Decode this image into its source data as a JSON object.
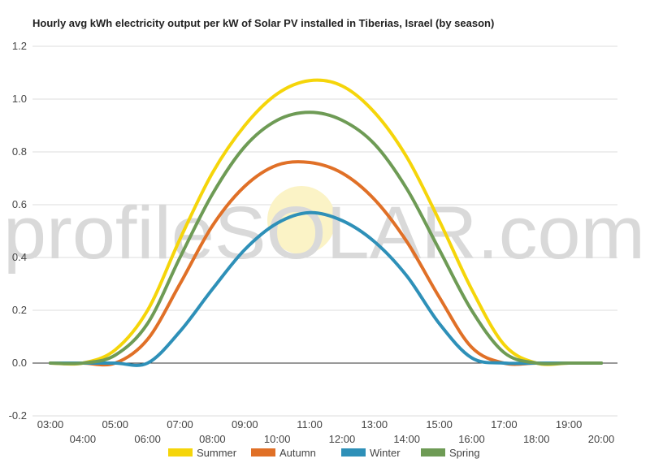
{
  "chart_data": {
    "type": "line",
    "title": "Hourly avg kWh electricity output per kW of Solar PV installed in Tiberias, Israel (by season)",
    "xlabel": "",
    "ylabel": "",
    "ylim": [
      -0.2,
      1.2
    ],
    "yticks": [
      "-0.2",
      "0.0",
      "0.2",
      "0.4",
      "0.6",
      "0.8",
      "1.0",
      "1.2"
    ],
    "categories": [
      "03:00",
      "04:00",
      "05:00",
      "06:00",
      "07:00",
      "08:00",
      "09:00",
      "10:00",
      "11:00",
      "12:00",
      "13:00",
      "14:00",
      "15:00",
      "16:00",
      "17:00",
      "18:00",
      "19:00",
      "20:00"
    ],
    "grid": true,
    "legend_position": "bottom",
    "watermark": "profileSOLAR.com",
    "series": [
      {
        "name": "Summer",
        "color": "#f5d50a",
        "values": [
          0.0,
          0.0,
          0.05,
          0.2,
          0.47,
          0.72,
          0.9,
          1.02,
          1.07,
          1.05,
          0.95,
          0.78,
          0.54,
          0.28,
          0.07,
          0.0,
          0.0,
          0.0
        ]
      },
      {
        "name": "Autumn",
        "color": "#e07027",
        "values": [
          0.0,
          0.0,
          0.0,
          0.09,
          0.3,
          0.52,
          0.67,
          0.75,
          0.76,
          0.72,
          0.62,
          0.46,
          0.25,
          0.06,
          0.0,
          0.0,
          0.0,
          0.0
        ]
      },
      {
        "name": "Winter",
        "color": "#2e90b8",
        "values": [
          0.0,
          0.0,
          0.0,
          0.0,
          0.12,
          0.28,
          0.43,
          0.53,
          0.57,
          0.54,
          0.46,
          0.33,
          0.15,
          0.02,
          0.0,
          0.0,
          0.0,
          0.0
        ]
      },
      {
        "name": "Spring",
        "color": "#6e9b55",
        "values": [
          0.0,
          0.0,
          0.03,
          0.15,
          0.4,
          0.64,
          0.82,
          0.92,
          0.95,
          0.92,
          0.83,
          0.66,
          0.43,
          0.2,
          0.04,
          0.0,
          0.0,
          0.0
        ]
      }
    ]
  }
}
